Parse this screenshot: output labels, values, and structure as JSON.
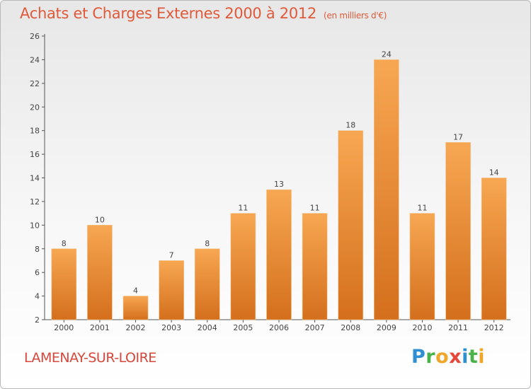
{
  "header": {
    "title": "Achats et Charges Externes 2000 à 2012",
    "unit": "(en milliers d'€)"
  },
  "footer": {
    "city": "LAMENAY-SUR-LOIRE",
    "logo_text": "Proxiti"
  },
  "colors": {
    "bar_top": "#f7a752",
    "bar_bottom": "#d46f1c",
    "title": "#e05a3a",
    "city": "#d7463a"
  },
  "chart_data": {
    "type": "bar",
    "categories": [
      "2000",
      "2001",
      "2002",
      "2003",
      "2004",
      "2005",
      "2006",
      "2007",
      "2008",
      "2009",
      "2010",
      "2011",
      "2012"
    ],
    "values": [
      8,
      10,
      4,
      7,
      8,
      11,
      13,
      11,
      18,
      24,
      11,
      17,
      14
    ],
    "ylim": [
      2,
      26
    ],
    "yticks": [
      2,
      4,
      6,
      8,
      10,
      12,
      14,
      16,
      18,
      20,
      22,
      24,
      26
    ],
    "grid": false,
    "legend": "none"
  }
}
